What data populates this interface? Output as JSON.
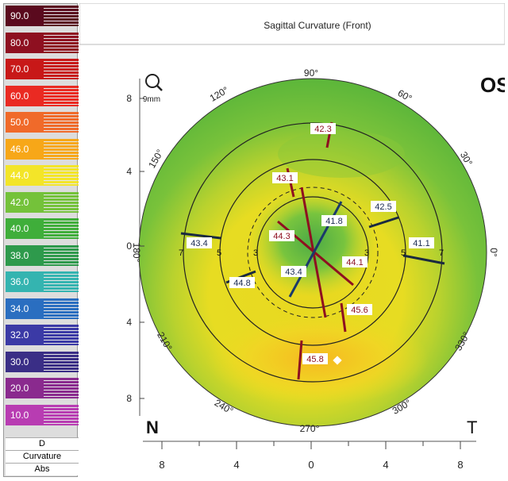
{
  "title": "Sagittal Curvature (Front)",
  "eye": "OS",
  "zoom_label": "9mm",
  "nasal": "N",
  "temporal": "T",
  "units": {
    "label": "D",
    "type": "Curvature",
    "mode": "Abs"
  },
  "legend": [
    {
      "value": "90.0",
      "color": "#5a0a1e"
    },
    {
      "value": "80.0",
      "color": "#8e1020"
    },
    {
      "value": "70.0",
      "color": "#c81818"
    },
    {
      "value": "60.0",
      "color": "#ea2a22"
    },
    {
      "value": "50.0",
      "color": "#f06a2a"
    },
    {
      "value": "46.0",
      "color": "#f7a718"
    },
    {
      "value": "44.0",
      "color": "#f3e528"
    },
    {
      "value": "42.0",
      "color": "#74c23a"
    },
    {
      "value": "40.0",
      "color": "#3fae3a"
    },
    {
      "value": "38.0",
      "color": "#2e9a4c"
    },
    {
      "value": "36.0",
      "color": "#34b4b0"
    },
    {
      "value": "34.0",
      "color": "#2a6ec0"
    },
    {
      "value": "32.0",
      "color": "#3b3aa6"
    },
    {
      "value": "30.0",
      "color": "#3a2e86"
    },
    {
      "value": "20.0",
      "color": "#8a2a8e"
    },
    {
      "value": "10.0",
      "color": "#b83cb2"
    }
  ],
  "angles": [
    "90°",
    "60°",
    "30°",
    "0°",
    "330°",
    "300°",
    "270°",
    "240°",
    "210°",
    "180°",
    "150°",
    "120°"
  ],
  "y_ticks": [
    "8",
    "4",
    "0",
    "4",
    "8"
  ],
  "x_ticks": [
    "8",
    "4",
    "0",
    "4",
    "8"
  ],
  "ring_labels": [
    "3",
    "3",
    "5",
    "5",
    "7",
    "7"
  ],
  "readings": [
    "42.3",
    "43.1",
    "42.5",
    "41.8",
    "44.3",
    "44.1",
    "43.4",
    "41.1",
    "43.4",
    "44.8",
    "45.6",
    "45.8"
  ]
}
